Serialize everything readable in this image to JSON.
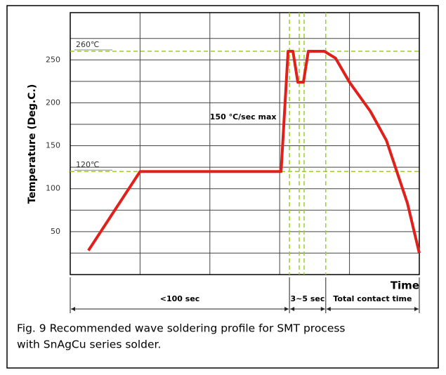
{
  "chart_data": {
    "type": "line",
    "ylabel": "Temperature (Deg.C.)",
    "xlabel": "Time",
    "x": [
      0.26,
      1.0,
      3.02,
      3.12,
      3.19,
      3.26,
      3.34,
      3.41,
      3.64,
      3.8,
      4.0,
      4.3,
      4.53,
      4.83,
      5.0
    ],
    "values": [
      28,
      120,
      120,
      260,
      260,
      224,
      224,
      260,
      260,
      252,
      224,
      190,
      156,
      83,
      25
    ],
    "color": "#e0201b",
    "xlim": [
      0,
      5
    ],
    "xticks": [
      0,
      1,
      2,
      3,
      4,
      5
    ],
    "ylim": [
      0,
      305
    ],
    "yticks": [
      50,
      100,
      150,
      200,
      250
    ],
    "minor_yticks": [
      25,
      75,
      125,
      175,
      225,
      275
    ],
    "grid": true,
    "reference_lines": {
      "color": "#9acd32",
      "y": [
        {
          "value": 260,
          "label": "260℃"
        },
        {
          "value": 120,
          "label": "120℃"
        }
      ],
      "x": [
        3.14,
        3.28,
        3.35,
        3.66
      ]
    },
    "annotation": {
      "text": "150 °C/sec max",
      "x": 2.0,
      "y": 183
    },
    "spans": [
      {
        "from": 0,
        "to": 3.14,
        "label": "<100 sec"
      },
      {
        "from": 3.14,
        "to": 3.66,
        "label": "3~5 sec"
      },
      {
        "from": 3.66,
        "to": 5,
        "label": "Total contact time"
      }
    ],
    "caption": [
      "Fig. 9 Recommended wave soldering profile for SMT process",
      "with SnAgCu series solder."
    ]
  }
}
